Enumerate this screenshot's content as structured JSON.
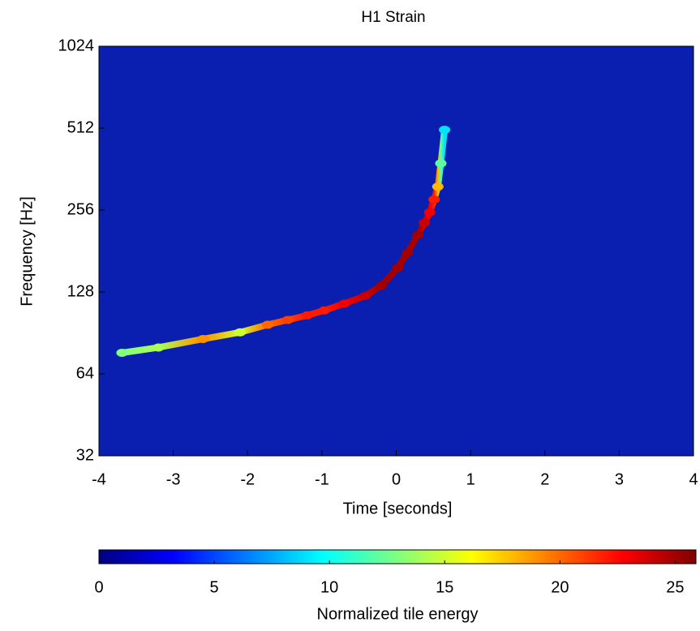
{
  "chart_data": {
    "type": "spectrogram",
    "title": "H1 Strain",
    "xlabel": "Time [seconds]",
    "ylabel": "Frequency [Hz]",
    "xlim": [
      -4,
      4
    ],
    "xticks": [
      -4,
      -3,
      -2,
      -1,
      0,
      1,
      2,
      3,
      4
    ],
    "ylim": [
      32,
      1024
    ],
    "yticks": [
      32,
      64,
      128,
      256,
      512,
      1024
    ],
    "ylog": true,
    "series": [
      {
        "x": [
          -3.69,
          -3.2,
          -2.6,
          -2.1,
          -1.73,
          -1.46,
          -1.2,
          -0.97,
          -0.7,
          -0.42,
          -0.2,
          0.02,
          0.15,
          0.29,
          0.38,
          0.45,
          0.51,
          0.56,
          0.6,
          0.65
        ],
        "values": [
          76.5,
          80,
          86,
          91,
          97,
          101,
          105,
          109.5,
          116,
          123.7,
          135,
          157,
          178,
          207,
          230,
          251,
          280,
          312,
          380,
          505
        ],
        "energy": [
          13,
          14,
          19,
          15,
          20,
          21,
          22,
          22,
          23,
          24,
          25,
          25,
          25,
          25,
          24,
          23,
          22,
          18,
          12,
          9
        ]
      }
    ],
    "colorbar_label": "Normalized tile energy",
    "clim": [
      0,
      25.9
    ],
    "cticks": [
      0,
      5,
      10,
      15,
      20,
      25
    ],
    "colormap": [
      "#00007f",
      "#0000ff",
      "#007fff",
      "#00ffff",
      "#7fff7f",
      "#ffff00",
      "#ff7f00",
      "#ff0000",
      "#7f0000"
    ]
  }
}
